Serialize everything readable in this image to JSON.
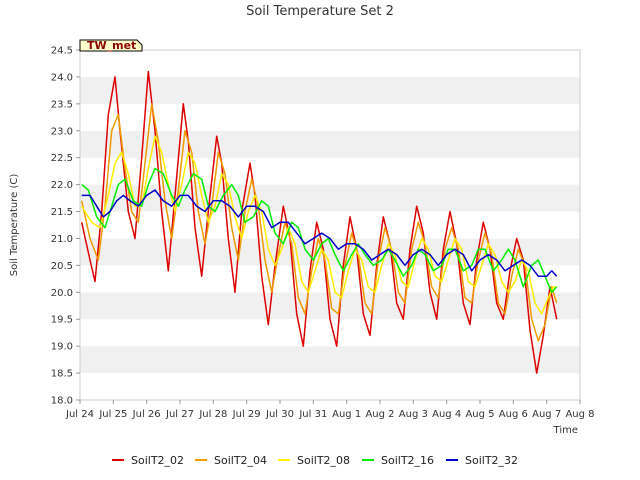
{
  "chart_data": {
    "type": "line",
    "title": "Soil Temperature Set 2",
    "xlabel": "Time",
    "ylabel": "Soil Temperature (C)",
    "station_label": "TW_met",
    "x_ticks": [
      "Jul 24",
      "Jul 25",
      "Jul 26",
      "Jul 27",
      "Jul 28",
      "Jul 29",
      "Jul 30",
      "Jul 31",
      "Aug 1",
      "Aug 2",
      "Aug 3",
      "Aug 4",
      "Aug 5",
      "Aug 6",
      "Aug 7",
      "Aug 8"
    ],
    "y_ticks": [
      "18.0",
      "18.5",
      "19.0",
      "19.5",
      "20.0",
      "20.5",
      "21.0",
      "21.5",
      "22.0",
      "22.5",
      "23.0",
      "23.5",
      "24.0",
      "24.5"
    ],
    "xlim": [
      0,
      15
    ],
    "ylim": [
      18.0,
      24.5
    ],
    "x_unit": "days since Jul 24",
    "grid": "horizontal alternating bands",
    "legend_position": "bottom",
    "series": [
      {
        "name": "SoilT2_02",
        "color": "#dd0000",
        "x": [
          0.05,
          0.3,
          0.45,
          0.65,
          0.85,
          1.05,
          1.2,
          1.45,
          1.65,
          1.85,
          2.05,
          2.25,
          2.45,
          2.65,
          2.85,
          3.1,
          3.25,
          3.45,
          3.65,
          3.85,
          4.1,
          4.25,
          4.45,
          4.65,
          4.85,
          5.1,
          5.25,
          5.45,
          5.65,
          5.85,
          6.1,
          6.3,
          6.5,
          6.7,
          6.9,
          7.1,
          7.3,
          7.5,
          7.7,
          7.9,
          8.1,
          8.3,
          8.5,
          8.7,
          8.9,
          9.1,
          9.3,
          9.5,
          9.7,
          9.9,
          10.1,
          10.3,
          10.5,
          10.7,
          10.9,
          11.1,
          11.3,
          11.5,
          11.7,
          11.9,
          12.1,
          12.3,
          12.5,
          12.7,
          12.9,
          13.1,
          13.3,
          13.5,
          13.7,
          13.9,
          14.1,
          14.3
        ],
        "y": [
          21.3,
          20.6,
          20.2,
          21.5,
          23.3,
          24.0,
          23.0,
          21.5,
          21.0,
          22.5,
          24.1,
          23.0,
          21.5,
          20.4,
          21.8,
          23.5,
          22.8,
          21.2,
          20.3,
          21.5,
          22.9,
          22.4,
          21.0,
          20.0,
          21.5,
          22.4,
          21.8,
          20.3,
          19.4,
          20.5,
          21.6,
          21.0,
          19.6,
          19.0,
          20.4,
          21.3,
          20.8,
          19.5,
          19.0,
          20.5,
          21.4,
          20.8,
          19.6,
          19.2,
          20.5,
          21.4,
          20.9,
          19.8,
          19.5,
          20.8,
          21.6,
          21.1,
          20.0,
          19.5,
          20.8,
          21.5,
          20.9,
          19.8,
          19.4,
          20.6,
          21.3,
          20.8,
          19.8,
          19.5,
          20.4,
          21.0,
          20.6,
          19.3,
          18.5,
          19.2,
          20.1,
          19.5
        ]
      },
      {
        "name": "SoilT2_04",
        "color": "#ee9a00",
        "x": [
          0.05,
          0.3,
          0.55,
          0.75,
          0.95,
          1.15,
          1.35,
          1.55,
          1.75,
          1.95,
          2.15,
          2.35,
          2.55,
          2.75,
          2.95,
          3.15,
          3.35,
          3.55,
          3.75,
          3.95,
          4.15,
          4.35,
          4.55,
          4.75,
          4.95,
          5.15,
          5.35,
          5.55,
          5.75,
          5.95,
          6.15,
          6.35,
          6.55,
          6.75,
          6.95,
          7.15,
          7.35,
          7.55,
          7.75,
          7.95,
          8.15,
          8.35,
          8.55,
          8.75,
          8.95,
          9.15,
          9.35,
          9.55,
          9.75,
          9.95,
          10.15,
          10.35,
          10.55,
          10.75,
          10.95,
          11.15,
          11.35,
          11.55,
          11.75,
          11.95,
          12.15,
          12.35,
          12.55,
          12.75,
          12.95,
          13.15,
          13.35,
          13.55,
          13.75,
          13.95,
          14.15,
          14.3
        ],
        "y": [
          21.7,
          21.0,
          20.6,
          21.6,
          23.0,
          23.3,
          22.3,
          21.5,
          21.3,
          22.4,
          23.5,
          22.8,
          21.7,
          21.0,
          21.9,
          23.0,
          22.6,
          21.5,
          20.9,
          21.6,
          22.6,
          22.2,
          21.2,
          20.6,
          21.5,
          22.1,
          21.6,
          20.6,
          20.0,
          20.7,
          21.3,
          20.9,
          19.9,
          19.6,
          20.4,
          21.0,
          20.6,
          19.7,
          19.6,
          20.5,
          21.1,
          20.7,
          19.8,
          19.6,
          20.6,
          21.2,
          20.8,
          20.0,
          19.8,
          20.8,
          21.3,
          20.9,
          20.1,
          19.9,
          20.8,
          21.2,
          20.8,
          19.9,
          19.8,
          20.6,
          21.1,
          20.7,
          19.8,
          19.6,
          20.3,
          20.8,
          20.5,
          19.5,
          19.1,
          19.4,
          20.1,
          19.8
        ]
      },
      {
        "name": "SoilT2_08",
        "color": "#ffee00",
        "x": [
          0.05,
          0.35,
          0.6,
          0.85,
          1.05,
          1.25,
          1.45,
          1.65,
          1.85,
          2.05,
          2.25,
          2.45,
          2.65,
          2.85,
          3.05,
          3.25,
          3.45,
          3.65,
          3.85,
          4.05,
          4.25,
          4.45,
          4.65,
          4.85,
          5.05,
          5.25,
          5.45,
          5.65,
          5.85,
          6.05,
          6.25,
          6.45,
          6.65,
          6.85,
          7.05,
          7.25,
          7.45,
          7.65,
          7.85,
          8.05,
          8.25,
          8.45,
          8.65,
          8.85,
          9.05,
          9.25,
          9.45,
          9.65,
          9.85,
          10.05,
          10.25,
          10.45,
          10.65,
          10.85,
          11.05,
          11.25,
          11.45,
          11.65,
          11.85,
          12.05,
          12.25,
          12.45,
          12.65,
          12.85,
          13.05,
          13.25,
          13.45,
          13.65,
          13.85,
          14.05,
          14.2,
          14.3
        ],
        "y": [
          21.6,
          21.3,
          21.2,
          21.8,
          22.4,
          22.6,
          22.2,
          21.6,
          21.6,
          22.3,
          22.9,
          22.6,
          22.0,
          21.5,
          22.0,
          22.6,
          22.4,
          21.8,
          21.3,
          21.6,
          22.2,
          22.0,
          21.4,
          21.0,
          21.5,
          21.8,
          21.5,
          20.8,
          20.5,
          20.8,
          21.2,
          20.9,
          20.2,
          20.0,
          20.4,
          20.8,
          20.6,
          20.0,
          19.9,
          20.4,
          20.8,
          20.6,
          20.1,
          20.0,
          20.5,
          20.9,
          20.7,
          20.2,
          20.1,
          20.6,
          21.0,
          20.8,
          20.3,
          20.2,
          20.6,
          21.0,
          20.8,
          20.2,
          20.1,
          20.5,
          20.9,
          20.7,
          20.2,
          20.0,
          20.2,
          20.6,
          20.4,
          19.8,
          19.6,
          19.9,
          20.1,
          20.1
        ]
      },
      {
        "name": "SoilT2_16",
        "color": "#00ee00",
        "x": [
          0.05,
          0.25,
          0.5,
          0.75,
          0.95,
          1.15,
          1.35,
          1.6,
          1.85,
          2.05,
          2.25,
          2.5,
          2.75,
          2.95,
          3.15,
          3.4,
          3.65,
          3.85,
          4.05,
          4.3,
          4.55,
          4.75,
          4.95,
          5.2,
          5.45,
          5.65,
          5.85,
          6.1,
          6.35,
          6.55,
          6.75,
          7.0,
          7.25,
          7.45,
          7.65,
          7.9,
          8.15,
          8.35,
          8.55,
          8.8,
          9.05,
          9.25,
          9.45,
          9.7,
          9.95,
          10.15,
          10.35,
          10.6,
          10.85,
          11.05,
          11.25,
          11.5,
          11.75,
          11.95,
          12.15,
          12.4,
          12.65,
          12.85,
          13.05,
          13.3,
          13.55,
          13.75,
          13.95,
          14.15,
          14.3
        ],
        "y": [
          22.0,
          21.9,
          21.4,
          21.2,
          21.6,
          22.0,
          22.1,
          21.7,
          21.6,
          22.0,
          22.3,
          22.2,
          21.8,
          21.6,
          21.9,
          22.2,
          22.1,
          21.6,
          21.5,
          21.8,
          22.0,
          21.8,
          21.3,
          21.4,
          21.7,
          21.6,
          21.1,
          20.9,
          21.3,
          21.2,
          20.8,
          20.6,
          20.9,
          21.0,
          20.7,
          20.4,
          20.7,
          20.9,
          20.7,
          20.5,
          20.6,
          20.8,
          20.6,
          20.3,
          20.5,
          20.8,
          20.7,
          20.4,
          20.5,
          20.8,
          20.8,
          20.4,
          20.5,
          20.8,
          20.8,
          20.4,
          20.6,
          20.8,
          20.6,
          20.1,
          20.5,
          20.6,
          20.3,
          20.0,
          20.1
        ]
      },
      {
        "name": "SoilT2_32",
        "color": "#0000cc",
        "x": [
          0.05,
          0.3,
          0.5,
          0.7,
          0.9,
          1.1,
          1.3,
          1.5,
          1.75,
          2.0,
          2.25,
          2.5,
          2.75,
          3.0,
          3.25,
          3.5,
          3.75,
          4.0,
          4.25,
          4.5,
          4.75,
          5.0,
          5.25,
          5.5,
          5.75,
          6.0,
          6.25,
          6.5,
          6.75,
          7.0,
          7.25,
          7.5,
          7.75,
          8.0,
          8.25,
          8.5,
          8.75,
          9.0,
          9.25,
          9.5,
          9.75,
          10.0,
          10.25,
          10.5,
          10.75,
          11.0,
          11.25,
          11.5,
          11.75,
          12.0,
          12.25,
          12.5,
          12.75,
          13.0,
          13.25,
          13.5,
          13.75,
          14.0,
          14.15,
          14.3
        ],
        "y": [
          21.8,
          21.8,
          21.6,
          21.4,
          21.5,
          21.7,
          21.8,
          21.7,
          21.6,
          21.8,
          21.9,
          21.7,
          21.6,
          21.8,
          21.8,
          21.6,
          21.5,
          21.7,
          21.7,
          21.6,
          21.4,
          21.6,
          21.6,
          21.5,
          21.2,
          21.3,
          21.3,
          21.1,
          20.9,
          21.0,
          21.1,
          21.0,
          20.8,
          20.9,
          20.9,
          20.8,
          20.6,
          20.7,
          20.8,
          20.7,
          20.5,
          20.7,
          20.8,
          20.7,
          20.5,
          20.7,
          20.8,
          20.7,
          20.4,
          20.6,
          20.7,
          20.6,
          20.4,
          20.5,
          20.6,
          20.5,
          20.3,
          20.3,
          20.4,
          20.3
        ]
      }
    ]
  }
}
